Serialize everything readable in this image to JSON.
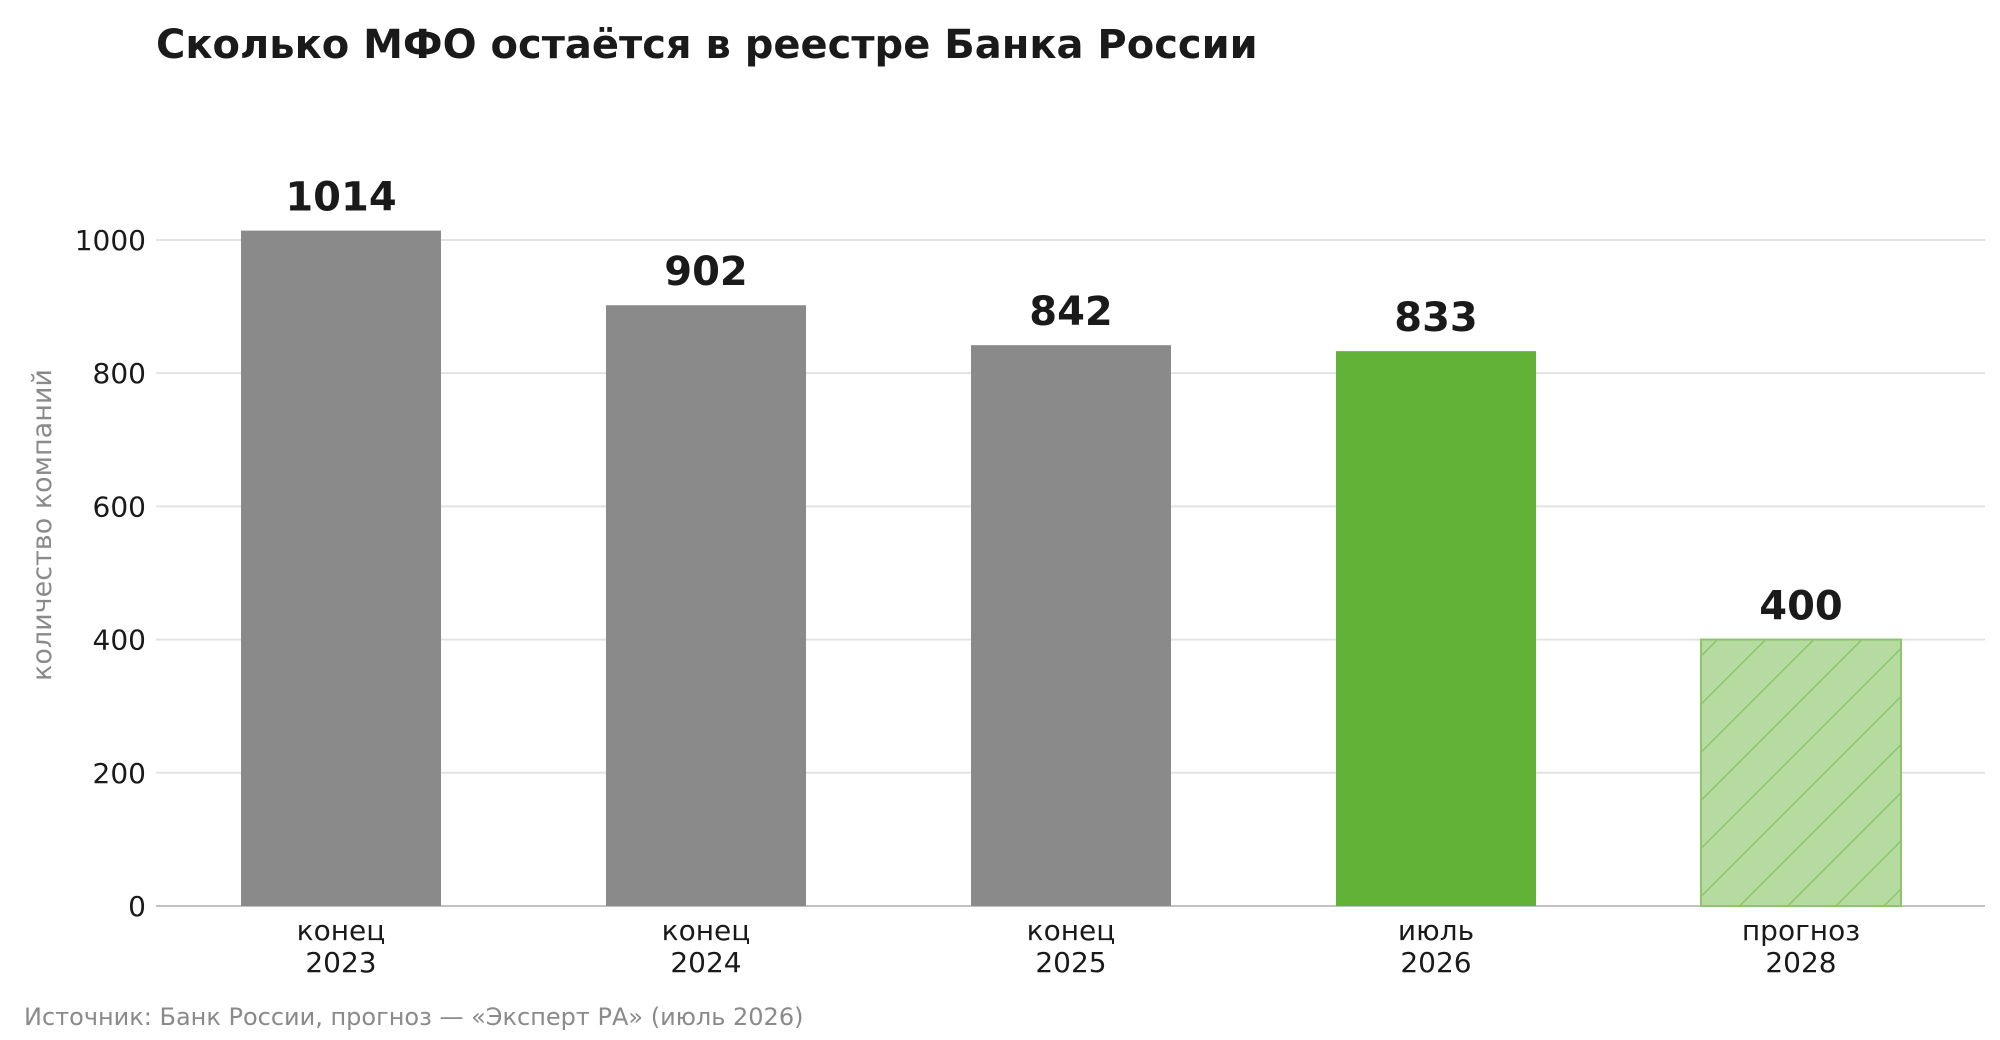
{
  "title": "Сколько МФО остаётся в реестре Банка России",
  "source": "Источник: Банк России, прогноз — «Эксперт РА» (июль 2026)",
  "colors": {
    "historical": "#8a8a8a",
    "current": "#62b238",
    "forecast_fill": "#b6dba1",
    "forecast_hatch": "#8cc56c",
    "grid": "#e3e3e3"
  },
  "chart_data": {
    "type": "bar",
    "title": "Сколько МФО остаётся в реестре Банка России",
    "xlabel": "",
    "ylabel": "количество компаний",
    "ylim": [
      0,
      1090
    ],
    "yticks": [
      0,
      200,
      400,
      600,
      800,
      1000
    ],
    "grid": true,
    "categories": [
      [
        "конец",
        "2023"
      ],
      [
        "конец",
        "2024"
      ],
      [
        "конец",
        "2025"
      ],
      [
        "июль",
        "2026"
      ],
      [
        "прогноз",
        "2028"
      ]
    ],
    "values": [
      1014,
      902,
      842,
      833,
      400
    ],
    "styles": [
      "historical",
      "historical",
      "historical",
      "current",
      "forecast"
    ]
  }
}
